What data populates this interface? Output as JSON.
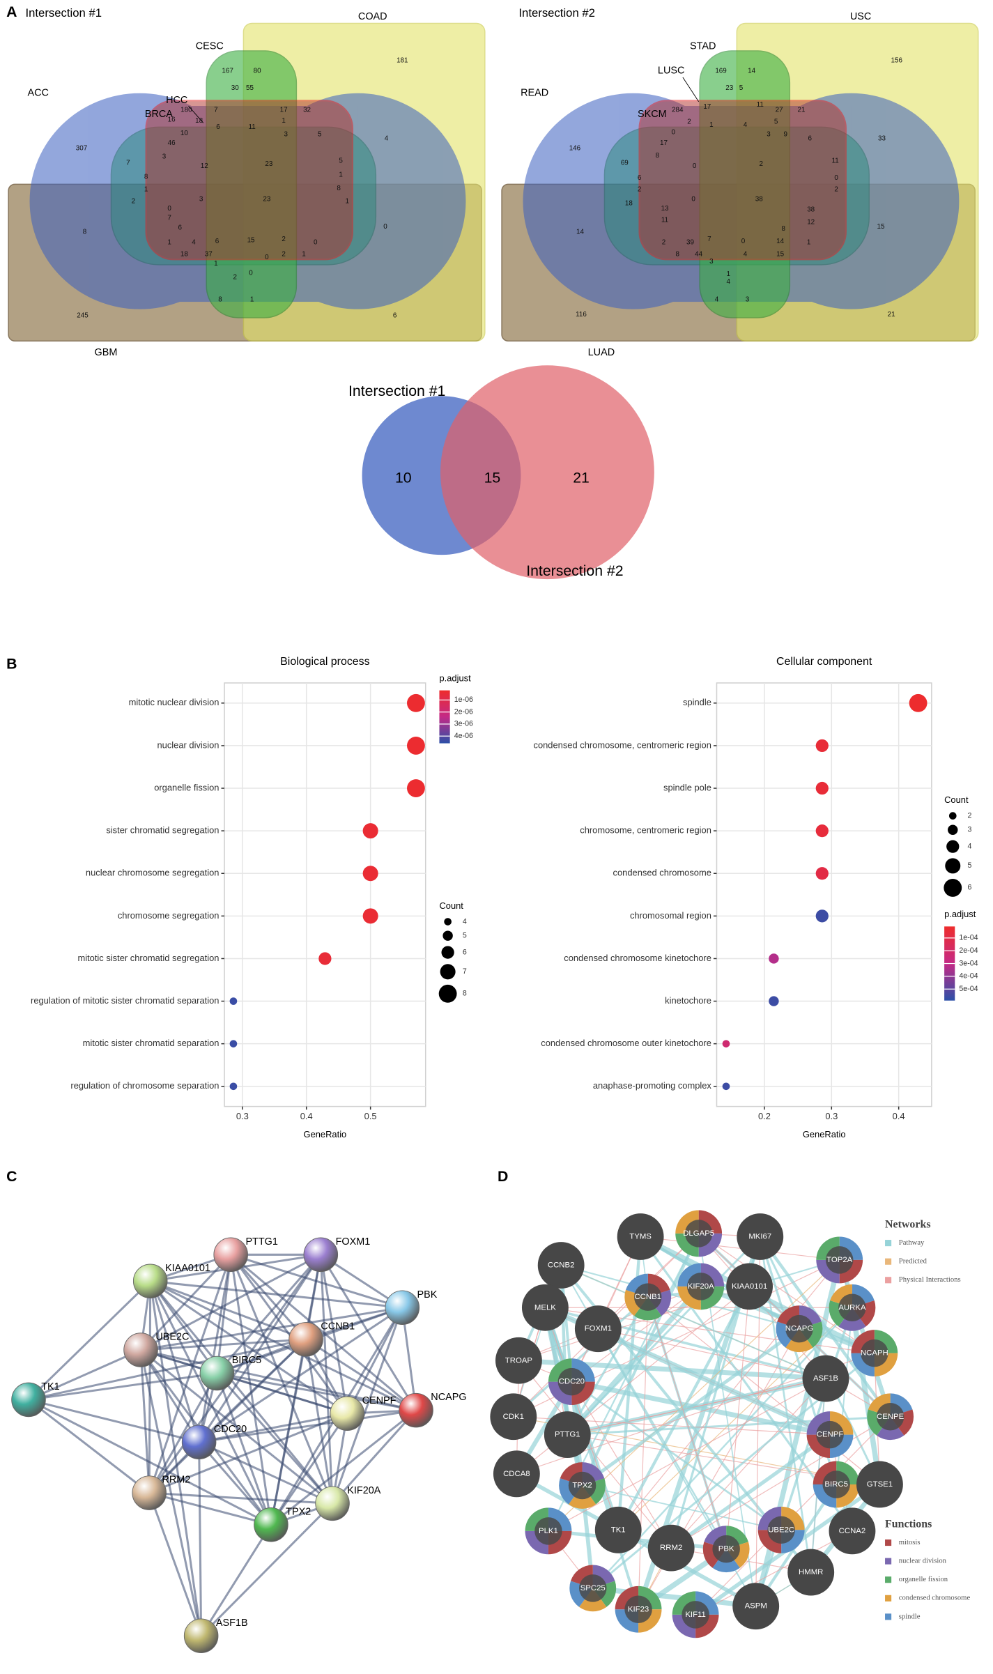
{
  "panels": [
    "A",
    "B",
    "C",
    "D"
  ],
  "chart_data": [
    {
      "type": "venn6",
      "title": "Intersection #1",
      "sets": [
        "ACC",
        "BRCA",
        "HCC",
        "CESC",
        "COAD",
        "GBM"
      ],
      "regions": [
        181,
        307,
        167,
        80,
        30,
        55,
        180,
        16,
        18,
        10,
        7,
        6,
        11,
        17,
        32,
        1,
        3,
        5,
        4,
        7,
        3,
        46,
        12,
        23,
        5,
        1,
        8,
        1,
        8,
        2,
        3,
        23,
        1,
        0,
        7,
        8,
        0,
        6,
        1,
        4,
        18,
        6,
        15,
        2,
        0,
        37,
        1,
        0,
        2,
        1,
        2,
        0,
        8,
        1,
        245,
        6
      ]
    },
    {
      "type": "venn6",
      "title": "Intersection #2",
      "sets": [
        "READ",
        "SKCM",
        "LUSC",
        "STAD",
        "USC",
        "LUAD"
      ],
      "regions": [
        156,
        146,
        169,
        14,
        23,
        5,
        284,
        2,
        17,
        1,
        4,
        11,
        27,
        21,
        0,
        5,
        3,
        9,
        33,
        6,
        17,
        8,
        69,
        0,
        2,
        11,
        6,
        2,
        0,
        2,
        18,
        0,
        38,
        13,
        11,
        14,
        15,
        38,
        12,
        2,
        8,
        39,
        7,
        0,
        8,
        14,
        15,
        1,
        44,
        3,
        4,
        1,
        4,
        4,
        3,
        116,
        21
      ]
    },
    {
      "type": "venn2",
      "sets": [
        "Intersection #1",
        "Intersection #2"
      ],
      "values": [
        10,
        15,
        21
      ],
      "colors": [
        "#4a6bc4",
        "#e06068"
      ]
    },
    {
      "type": "dot",
      "title": "Biological process",
      "categories": [
        "mitotic nuclear division",
        "nuclear division",
        "organelle fission",
        "sister chromatid segregation",
        "nuclear chromosome segregation",
        "chromosome segregation",
        "mitotic sister chromatid segregation",
        "regulation of mitotic sister chromatid separation",
        "mitotic sister chromatid separation",
        "regulation of chromosome separation"
      ],
      "values": [
        0.571,
        0.571,
        0.571,
        0.5,
        0.5,
        0.5,
        0.429,
        0.286,
        0.286,
        0.286
      ],
      "counts": [
        8,
        8,
        8,
        7,
        7,
        7,
        6,
        4,
        4,
        4
      ],
      "p_adjust": [
        3e-07,
        3e-07,
        3e-07,
        4e-07,
        4e-07,
        4e-07,
        5e-07,
        4.4e-06,
        4.4e-06,
        4.4e-06
      ],
      "xlim": [
        0.272,
        0.586
      ],
      "xticks": [
        0.3,
        0.4,
        0.5
      ],
      "x_label": "GeneRatio",
      "grid": true,
      "size_title": "Count",
      "size_ticks": [
        4,
        5,
        6,
        7,
        8
      ],
      "color_title": "p.adjust",
      "color_lim": [
        2e-07,
        4.6e-06
      ],
      "color_ticks": [
        {
          "value": 1e-06,
          "label": "1e-06"
        },
        {
          "value": 2e-06,
          "label": "2e-06"
        },
        {
          "value": 3e-06,
          "label": "3e-06"
        },
        {
          "value": 4e-06,
          "label": "4e-06"
        }
      ],
      "color_scale": [
        "#ee2c2c",
        "#c42a86",
        "#2c50a8"
      ]
    },
    {
      "type": "dot",
      "title": "Cellular component",
      "categories": [
        "spindle",
        "condensed chromosome, centromeric region",
        "spindle pole",
        "chromosome, centromeric region",
        "condensed chromosome",
        "chromosomal region",
        "condensed chromosome kinetochore",
        "kinetochore",
        "condensed chromosome outer kinetochore",
        "anaphase-promoting complex"
      ],
      "values": [
        0.429,
        0.286,
        0.286,
        0.286,
        0.286,
        0.286,
        0.214,
        0.214,
        0.143,
        0.143
      ],
      "counts": [
        6,
        4,
        4,
        4,
        4,
        4,
        3,
        3,
        2,
        2
      ],
      "p_adjust": [
        1.5e-05,
        5e-05,
        5e-05,
        6e-05,
        9e-05,
        0.00056,
        0.00033,
        0.00056,
        0.00023,
        0.00056
      ],
      "xlim": [
        0.129,
        0.449
      ],
      "xticks": [
        0.2,
        0.3,
        0.4
      ],
      "x_label": "GeneRatio",
      "grid": true,
      "size_title": "Count",
      "size_ticks": [
        2,
        3,
        4,
        5,
        6
      ],
      "color_title": "p.adjust",
      "color_lim": [
        1e-05,
        0.00059
      ],
      "color_ticks": [
        {
          "value": 0.0001,
          "label": "1e-04"
        },
        {
          "value": 0.0002,
          "label": "2e-04"
        },
        {
          "value": 0.0003,
          "label": "3e-04"
        },
        {
          "value": 0.0004,
          "label": "4e-04"
        },
        {
          "value": 0.0005,
          "label": "5e-04"
        }
      ],
      "color_scale": [
        "#ee2c2c",
        "#c42a86",
        "#2c50a8"
      ]
    },
    {
      "type": "network_string",
      "nodes": [
        "PTTG1",
        "FOXM1",
        "KIAA0101",
        "PBK",
        "UBE2C",
        "CCNB1",
        "BIRC5",
        "TK1",
        "CENPF",
        "NCAPG",
        "CDC20",
        "RRM2",
        "TPX2",
        "KIF20A",
        "ASF1B"
      ]
    },
    {
      "type": "network_genemania",
      "nodes": [
        "DLGAP5",
        "TYMS",
        "MKI67",
        "CCNB2",
        "TOP2A",
        "CCNB1",
        "KIF20A",
        "KIAA0101",
        "MELK",
        "AURKA",
        "FOXM1",
        "NCAPG",
        "NCAPH",
        "TROAP",
        "CDC20",
        "ASF1B",
        "CDK1",
        "PTTG1",
        "CENPF",
        "CENPE",
        "CDCA8",
        "TPX2",
        "BIRC5",
        "GTSE1",
        "PLK1",
        "TK1",
        "RRM2",
        "PBK",
        "UBE2C",
        "CCNA2",
        "HMMR",
        "SPC25",
        "KIF23",
        "ASPM",
        "KIF11"
      ],
      "legend_groups": [
        {
          "title": "Networks",
          "items": [
            "Pathway",
            "Predicted",
            "Physical Interactions"
          ],
          "colors": [
            "#96d3d8",
            "#e9b77a",
            "#eba0a0"
          ]
        },
        {
          "title": "Functions",
          "items": [
            "mitosis",
            "nuclear division",
            "organelle fission",
            "condensed chromosome",
            "spindle"
          ],
          "colors": [
            "#b04848",
            "#7a68b0",
            "#5aab6a",
            "#e0a040",
            "#5a90c8"
          ]
        }
      ]
    }
  ]
}
